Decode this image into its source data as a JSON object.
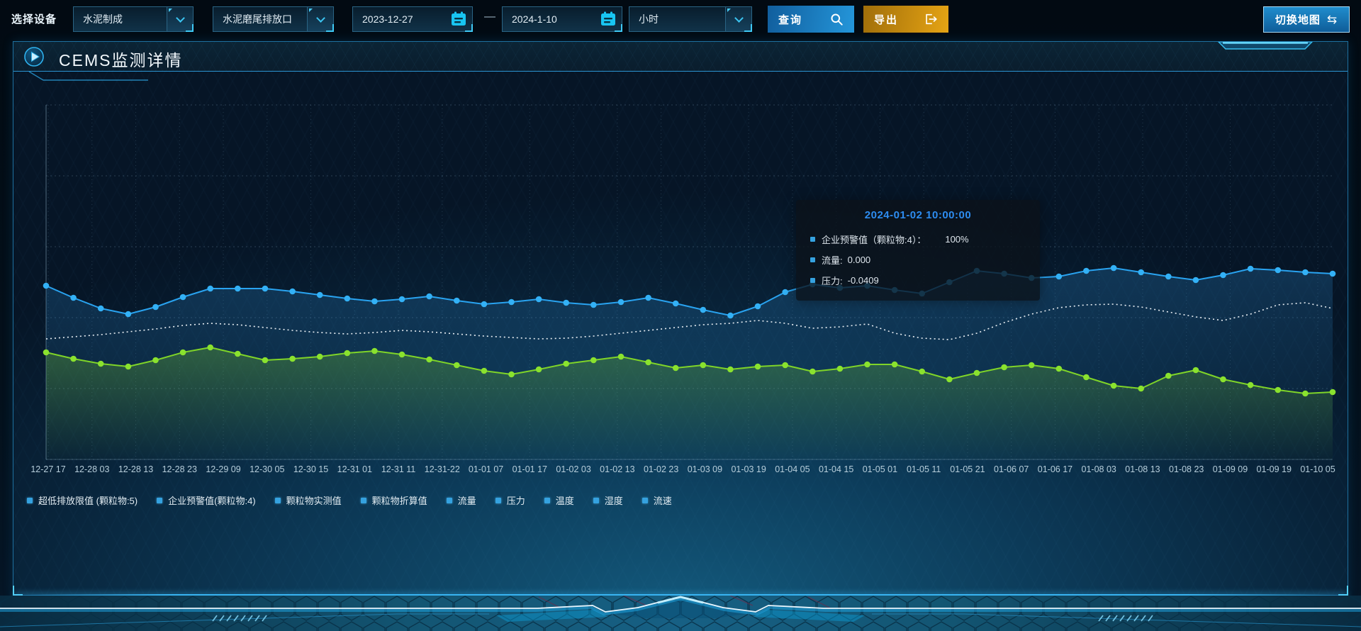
{
  "toolbar": {
    "device_label": "选择设备",
    "selects": [
      {
        "value": "水泥制成"
      },
      {
        "value": "水泥磨尾排放口"
      },
      {
        "value": "小时"
      }
    ],
    "date_start": "2023-12-27",
    "date_separator": "—",
    "date_end": "2024-1-10",
    "query_label": "查询",
    "export_label": "导出",
    "switch_map_label": "切换地图"
  },
  "icons": {
    "swap_glyph": "⇆"
  },
  "panel": {
    "title": "CEMS监测详情"
  },
  "tooltip": {
    "title": "2024-01-02 10:00:00",
    "items": [
      {
        "label": "企业预警值（颗粒物:4）：",
        "value": "100%",
        "marker_color": "#35a2e0"
      },
      {
        "label": "流量:",
        "value": "0.000",
        "marker_color": "#35a2e0"
      },
      {
        "label": "压力:",
        "value": "-0.0409",
        "marker_color": "#35a2e0"
      }
    ]
  },
  "legend": [
    "超低排放限值 (颗粒物:5)",
    "企业预警值(颗粒物:4)",
    "颗粒物实测值",
    "颗粒物折算值",
    "流量",
    "压力",
    "温度",
    "湿度",
    "流速"
  ],
  "colors": {
    "accent_blue": "#29a3f0",
    "accent_cyan": "#3cc6f2",
    "green_line": "#7fd428",
    "white_line": "#e9eff4",
    "export_orange": "#d99414",
    "tooltip_title": "#2d8cf0",
    "legend_marker": "#35a2e0",
    "panel_border": "#1d6f9e"
  },
  "chart_data": {
    "type": "line",
    "title": "",
    "xlabel": "",
    "ylabel": "",
    "grid": true,
    "legend_position": "bottom",
    "ylim": [
      0,
      100
    ],
    "y_axis_labeled": false,
    "note": "y-axis has no tick labels; series values are relative heights (percent of plot height) read from pixels",
    "x_ticks": [
      "12-27 17",
      "12-28 03",
      "12-28 13",
      "12-28 23",
      "12-29 09",
      "12-30 05",
      "12-30 15",
      "12-31 01",
      "12-31 11",
      "12-31-22",
      "01-01 07",
      "01-01 17",
      "01-02 03",
      "01-02 13",
      "01-02 23",
      "01-03 09",
      "01-03 19",
      "01-04 05",
      "01-04 15",
      "01-05 01",
      "01-05 11",
      "01-05 21",
      "01-06 07",
      "01-06 17",
      "01-08 03",
      "01-08 13",
      "01-08 23",
      "01-09 09",
      "01-09 19",
      "01-10 05"
    ],
    "series": [
      {
        "name": "企业预警值(颗粒物:4)",
        "color": "#29a3f0",
        "marker_color": "#33b1f6",
        "style": "solid",
        "markers": true,
        "area": "gblue",
        "values": [
          49,
          45.6,
          42.6,
          41,
          43,
          45.8,
          48.2,
          48.2,
          48.2,
          47.4,
          46.4,
          45.4,
          44.6,
          45.2,
          46,
          44.8,
          43.8,
          44.4,
          45.2,
          44.2,
          43.6,
          44.4,
          45.6,
          44,
          42.2,
          40.6,
          43.2,
          47.2,
          49.4,
          48.4,
          49,
          47.8,
          46.8,
          50,
          53.2,
          52.4,
          51.2,
          51.6,
          53.2,
          54,
          52.8,
          51.6,
          50.6,
          52,
          53.8,
          53.4,
          52.8,
          52.4
        ]
      },
      {
        "name": "流量",
        "color": "#e9eff4",
        "marker_color": "#e9eff4",
        "style": "dotted",
        "markers": false,
        "area": null,
        "values": [
          34,
          34.6,
          35.2,
          36,
          36.8,
          37.8,
          38.4,
          38,
          37.2,
          36.4,
          35.8,
          35.4,
          35.8,
          36.4,
          36,
          35.4,
          34.8,
          34.4,
          34,
          34.2,
          34.8,
          35.6,
          36.4,
          37.2,
          38,
          38.4,
          39.2,
          38.4,
          37,
          37.4,
          38.2,
          35.6,
          34.2,
          33.8,
          35.6,
          38.6,
          41,
          42.8,
          43.6,
          43.8,
          43,
          41.6,
          40.2,
          39.2,
          41,
          43.6,
          44.2,
          42.6
        ]
      },
      {
        "name": "压力",
        "color": "#7fd428",
        "marker_color": "#8ae22e",
        "style": "solid",
        "markers": true,
        "area": "ggreen",
        "values": [
          30.2,
          28.4,
          27,
          26.2,
          28,
          30.2,
          31.6,
          29.8,
          28,
          28.4,
          29,
          30,
          30.6,
          29.6,
          28.2,
          26.6,
          25,
          24,
          25.4,
          27,
          28,
          29,
          27.4,
          25.8,
          26.6,
          25.4,
          26.2,
          26.6,
          24.8,
          25.6,
          26.8,
          26.8,
          24.8,
          22.6,
          24.4,
          26,
          26.6,
          25.6,
          23.2,
          20.8,
          20,
          23.6,
          25.2,
          22.6,
          21,
          19.6,
          18.6,
          19
        ]
      }
    ]
  }
}
